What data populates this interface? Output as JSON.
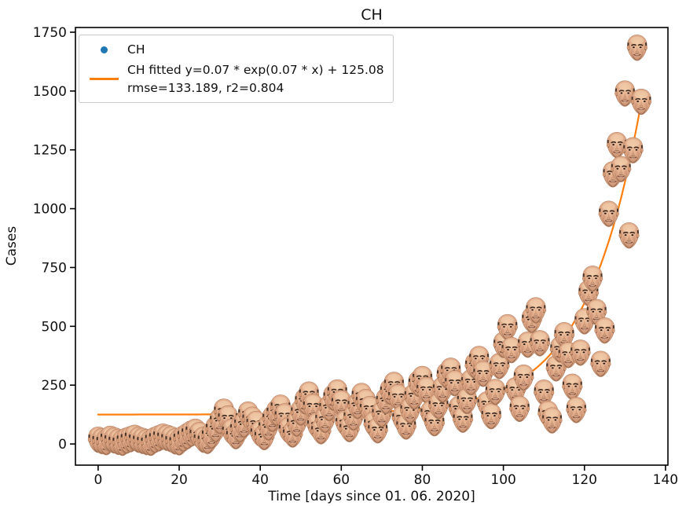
{
  "chart_data": {
    "type": "scatter",
    "title": "CH",
    "xlabel": "Time [days since 01. 06. 2020]",
    "ylabel": "Cases",
    "xlim": [
      -5.6,
      140.6
    ],
    "ylim": [
      -90,
      1770
    ],
    "xticks": [
      0,
      20,
      40,
      60,
      80,
      100,
      120,
      140
    ],
    "yticks": [
      0,
      250,
      500,
      750,
      1000,
      1250,
      1500,
      1750
    ],
    "grid": false,
    "legend": {
      "position": "upper left",
      "entries": [
        {
          "label": "CH",
          "marker": "point",
          "color": "#1f77b4"
        },
        {
          "label_line1": "CH fitted y=0.07 * exp(0.07 * x) + 125.08",
          "label_line2": "rmse=133.189, r2=0.804",
          "marker": "line",
          "color": "#ff7f0e"
        }
      ]
    },
    "marker": {
      "style": "small portrait photo of a bald man's face used as the scatter marker for every data point",
      "approx_size_px": 31
    },
    "series": [
      {
        "name": "CH",
        "type": "scatter",
        "x": [
          0,
          1,
          2,
          3,
          4,
          5,
          6,
          7,
          8,
          9,
          10,
          11,
          12,
          13,
          14,
          15,
          16,
          17,
          18,
          19,
          20,
          21,
          22,
          23,
          24,
          25,
          26,
          27,
          28,
          29,
          30,
          31,
          32,
          33,
          34,
          35,
          36,
          37,
          38,
          39,
          40,
          41,
          42,
          43,
          44,
          45,
          46,
          47,
          48,
          49,
          50,
          51,
          52,
          53,
          54,
          55,
          56,
          57,
          58,
          59,
          60,
          61,
          62,
          63,
          64,
          65,
          66,
          67,
          68,
          69,
          70,
          71,
          72,
          73,
          74,
          75,
          76,
          77,
          78,
          79,
          80,
          81,
          82,
          83,
          84,
          85,
          86,
          87,
          88,
          89,
          90,
          91,
          92,
          93,
          94,
          95,
          96,
          97,
          98,
          99,
          100,
          101,
          102,
          103,
          104,
          105,
          106,
          107,
          108,
          109,
          110,
          111,
          112,
          113,
          114,
          115,
          116,
          117,
          118,
          119,
          120,
          121,
          122,
          123,
          124,
          125,
          126,
          127,
          128,
          129,
          130,
          131,
          132,
          133,
          134
        ],
        "y": [
          18,
          12,
          8,
          22,
          15,
          9,
          5,
          14,
          20,
          26,
          18,
          13,
          8,
          5,
          17,
          24,
          31,
          26,
          20,
          11,
          7,
          22,
          33,
          44,
          52,
          38,
          18,
          13,
          35,
          63,
          97,
          137,
          108,
          52,
          33,
          62,
          82,
          125,
          103,
          85,
          44,
          29,
          70,
          106,
          132,
          154,
          117,
          58,
          40,
          86,
          133,
          181,
          210,
          158,
          78,
          54,
          102,
          152,
          197,
          219,
          173,
          88,
          63,
          112,
          161,
          204,
          178,
          148,
          83,
          58,
          126,
          182,
          222,
          251,
          199,
          108,
          74,
          142,
          202,
          256,
          276,
          229,
          128,
          88,
          161,
          231,
          291,
          311,
          258,
          148,
          103,
          182,
          262,
          332,
          361,
          298,
          168,
          118,
          221,
          331,
          421,
          496,
          399,
          228,
          149,
          282,
          422,
          527,
          568,
          428,
          218,
          128,
          100,
          321,
          401,
          462,
          378,
          243,
          144,
          388,
          521,
          641,
          702,
          560,
          340,
          482,
          978,
          1146,
          1270,
          1168,
          1489,
          886,
          1248,
          1684,
          1454
        ]
      },
      {
        "name": "CH fitted",
        "type": "line",
        "color": "#ff7f0e",
        "fit": {
          "equation": "y=0.07 * exp(0.07 * x) + 125.08",
          "a": 0.07,
          "b": 0.07,
          "c": 125.08,
          "rmse": 133.189,
          "r2": 0.804,
          "b_render": 0.0735,
          "x_range": [
            0,
            134
          ]
        }
      }
    ],
    "colors": {
      "scatter_legend_dot": "#1f77b4",
      "fit_line": "#ff7f0e",
      "text": "#111111",
      "spines": "#000000",
      "background": "#ffffff"
    }
  }
}
